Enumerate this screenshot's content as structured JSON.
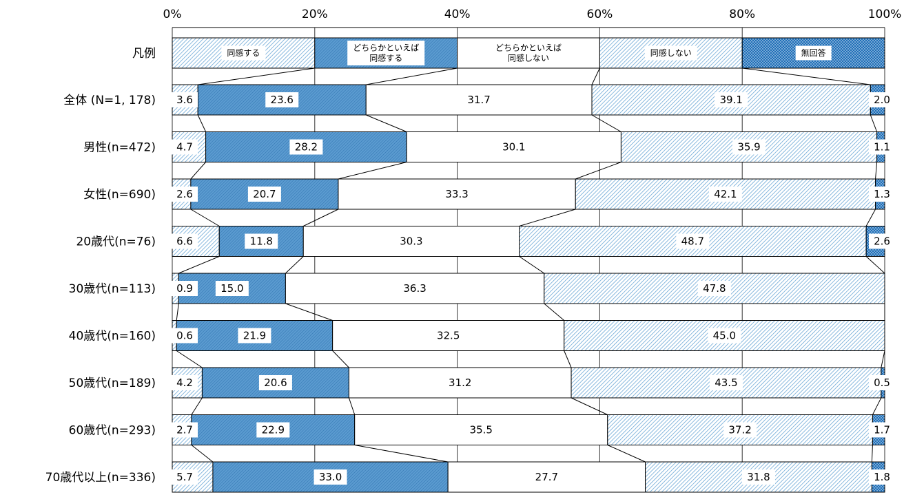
{
  "chart_data": {
    "type": "bar",
    "orientation": "horizontal",
    "stacked": "100%",
    "xlim": [
      0,
      100
    ],
    "x_ticks": [
      "0%",
      "20%",
      "40%",
      "60%",
      "80%",
      "100%"
    ],
    "legend_row_label": "凡例",
    "series": [
      {
        "name": "同感する",
        "legend_lines": [
          "同感する"
        ],
        "fill": "light-diagonal-hatch",
        "color": "#7ab0d8"
      },
      {
        "name": "どちらかといえば同感する",
        "legend_lines": [
          "どちらかといえば",
          "同感する"
        ],
        "fill": "blue-fine-hatch",
        "color": "#4d8fc6"
      },
      {
        "name": "どちらかといえば同感しない",
        "legend_lines": [
          "どちらかといえば",
          "同感しない"
        ],
        "fill": "white",
        "color": "#ffffff"
      },
      {
        "name": "同感しない",
        "legend_lines": [
          "同感しない"
        ],
        "fill": "light-diagonal-hatch",
        "color": "#7ab0d8"
      },
      {
        "name": "無回答",
        "legend_lines": [
          "無回答"
        ],
        "fill": "blue-dots",
        "color": "#1f6fb8"
      }
    ],
    "categories": [
      "全体 (N=1, 178)",
      "男性(n=472)",
      "女性(n=690)",
      "20歳代(n=76)",
      "30歳代(n=113)",
      "40歳代(n=160)",
      "50歳代(n=189)",
      "60歳代(n=293)",
      "70歳代以上(n=336)"
    ],
    "values": [
      [
        3.6,
        23.6,
        31.7,
        39.1,
        2.0
      ],
      [
        4.7,
        28.2,
        30.1,
        35.9,
        1.1
      ],
      [
        2.6,
        20.7,
        33.3,
        42.1,
        1.3
      ],
      [
        6.6,
        11.8,
        30.3,
        48.7,
        2.6
      ],
      [
        0.9,
        15.0,
        36.3,
        47.8,
        0.0
      ],
      [
        0.6,
        21.9,
        32.5,
        45.0,
        0.0
      ],
      [
        4.2,
        20.6,
        31.2,
        43.5,
        0.5
      ],
      [
        2.7,
        22.9,
        35.5,
        37.2,
        1.7
      ],
      [
        5.7,
        33.0,
        27.7,
        31.8,
        1.8
      ]
    ],
    "value_labels": [
      [
        "3.6",
        "23.6",
        "31.7",
        "39.1",
        "2.0"
      ],
      [
        "4.7",
        "28.2",
        "30.1",
        "35.9",
        "1.1"
      ],
      [
        "2.6",
        "20.7",
        "33.3",
        "42.1",
        "1.3"
      ],
      [
        "6.6",
        "11.8",
        "30.3",
        "48.7",
        "2.6"
      ],
      [
        "0.9",
        "15.0",
        "36.3",
        "47.8",
        ""
      ],
      [
        "0.6",
        "21.9",
        "32.5",
        "45.0",
        ""
      ],
      [
        "4.2",
        "20.6",
        "31.2",
        "43.5",
        "0.5"
      ],
      [
        "2.7",
        "22.9",
        "35.5",
        "37.2",
        "1.7"
      ],
      [
        "5.7",
        "33.0",
        "27.7",
        "31.8",
        "1.8"
      ]
    ],
    "grid": true
  }
}
